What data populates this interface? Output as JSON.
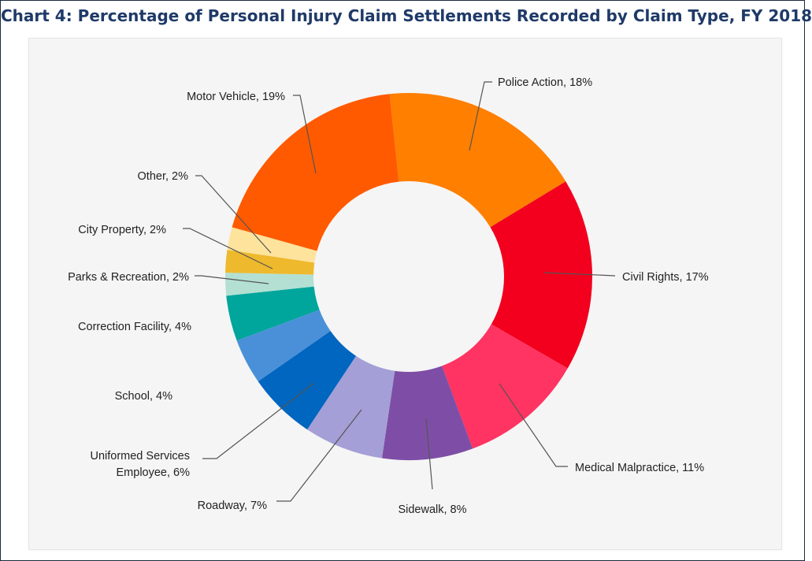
{
  "title": "Chart 4: Percentage of Personal Injury Claim Settlements Recorded by Claim Type, FY 2018",
  "chart_data": {
    "type": "pie",
    "variant": "donut",
    "title": "Chart 4: Percentage of Personal Injury Claim Settlements Recorded by Claim Type, FY 2018",
    "unit": "%",
    "slices": [
      {
        "label": "Police Action",
        "value": 18,
        "color": "#ff7f00",
        "display": [
          "Police Action, 18%"
        ]
      },
      {
        "label": "Civil Rights",
        "value": 17,
        "color": "#f2001e",
        "display": [
          "Civil Rights, 17%"
        ]
      },
      {
        "label": "Medical Malpractice",
        "value": 11,
        "color": "#ff3462",
        "display": [
          "Medical Malpractice, 11%"
        ]
      },
      {
        "label": "Sidewalk",
        "value": 8,
        "color": "#7e4ea6",
        "display": [
          "Sidewalk, 8%"
        ]
      },
      {
        "label": "Roadway",
        "value": 7,
        "color": "#a49fd6",
        "display": [
          "Roadway, 7%"
        ]
      },
      {
        "label": "Uniformed Services Employee",
        "value": 6,
        "color": "#0066bf",
        "display": [
          "Uniformed Services",
          "Employee, 6%"
        ]
      },
      {
        "label": "School",
        "value": 4,
        "color": "#4a90d9",
        "display": [
          "School, 4%"
        ]
      },
      {
        "label": "Correction Facility",
        "value": 4,
        "color": "#00a59b",
        "display": [
          "Correction Facility, 4%"
        ]
      },
      {
        "label": "Parks & Recreation",
        "value": 2,
        "color": "#b3e0d3",
        "display": [
          "Parks & Recreation, 2%"
        ]
      },
      {
        "label": "City Property",
        "value": 2,
        "color": "#efb92d",
        "display": [
          "City Property, 2%"
        ]
      },
      {
        "label": "Other",
        "value": 2,
        "color": "#fde39c",
        "display": [
          "Other, 2%"
        ]
      },
      {
        "label": "Motor Vehicle",
        "value": 19,
        "color": "#ff5a00",
        "display": [
          "Motor Vehicle, 19%"
        ]
      }
    ],
    "legend": "none"
  }
}
